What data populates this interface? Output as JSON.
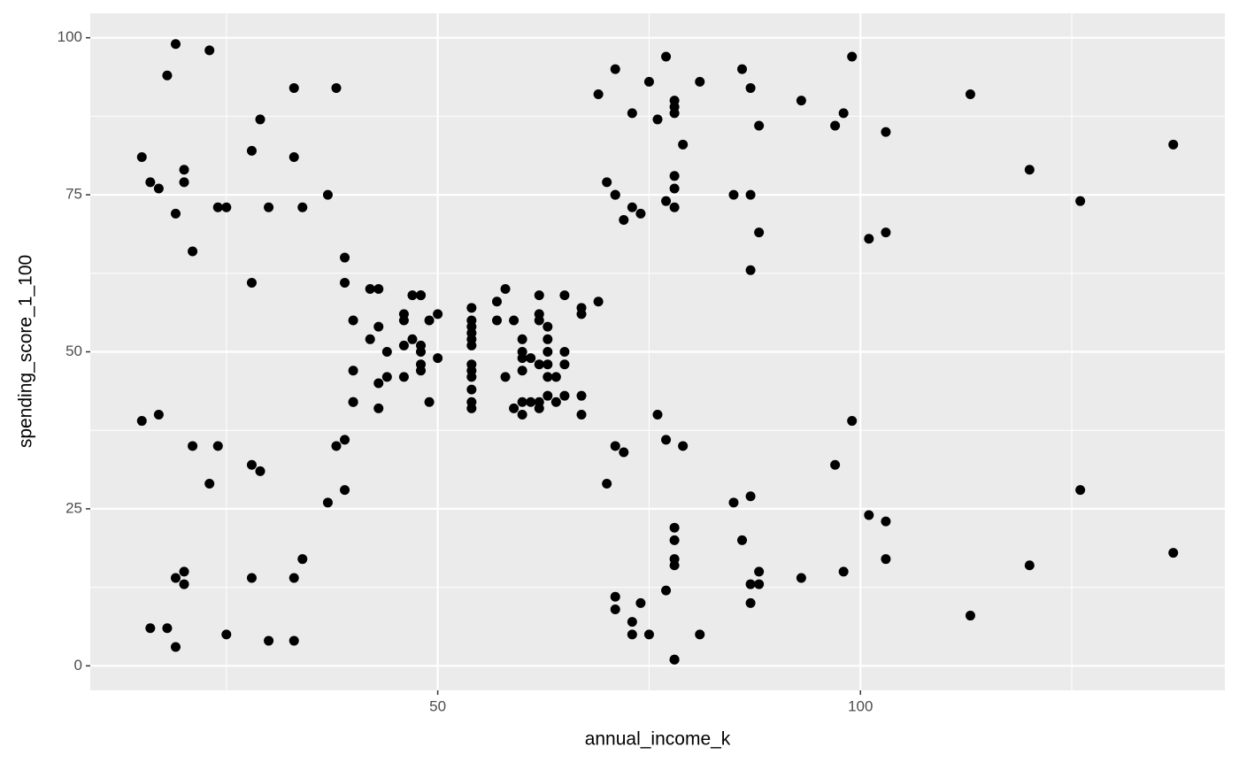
{
  "chart_data": {
    "type": "scatter",
    "x_label": "annual_income_k",
    "y_label": "spending_score_1_100",
    "xlim": [
      8.9,
      143.1
    ],
    "ylim": [
      -3.9,
      103.9
    ],
    "xticks": [
      50,
      100
    ],
    "yticks": [
      0,
      25,
      50,
      75,
      100
    ],
    "x_minor_breaks": [
      25,
      75,
      125
    ],
    "y_minor_breaks": [
      12.5,
      37.5,
      62.5,
      87.5
    ],
    "grid": true,
    "color": "#000000",
    "background": "#ebebeb",
    "x": [
      15,
      15,
      16,
      16,
      17,
      17,
      18,
      18,
      19,
      19,
      19,
      19,
      20,
      20,
      20,
      20,
      21,
      21,
      23,
      23,
      24,
      24,
      25,
      25,
      28,
      28,
      28,
      28,
      29,
      29,
      30,
      30,
      33,
      33,
      33,
      33,
      34,
      34,
      37,
      37,
      38,
      38,
      39,
      39,
      39,
      39,
      40,
      40,
      40,
      40,
      42,
      42,
      43,
      43,
      43,
      43,
      44,
      44,
      46,
      46,
      46,
      46,
      47,
      47,
      48,
      48,
      48,
      48,
      48,
      48,
      49,
      49,
      50,
      50,
      54,
      54,
      54,
      54,
      54,
      54,
      54,
      54,
      54,
      54,
      54,
      54,
      57,
      57,
      58,
      58,
      59,
      59,
      60,
      60,
      60,
      60,
      60,
      60,
      61,
      61,
      62,
      62,
      62,
      62,
      62,
      62,
      63,
      63,
      63,
      63,
      63,
      63,
      64,
      64,
      65,
      65,
      65,
      65,
      67,
      67,
      67,
      67,
      69,
      69,
      70,
      70,
      71,
      71,
      71,
      71,
      71,
      71,
      72,
      72,
      73,
      73,
      73,
      73,
      74,
      74,
      75,
      75,
      76,
      76,
      77,
      77,
      77,
      77,
      78,
      78,
      78,
      78,
      78,
      78,
      78,
      78,
      78,
      78,
      78,
      78,
      79,
      79,
      81,
      81,
      85,
      85,
      86,
      86,
      87,
      87,
      87,
      87,
      87,
      87,
      88,
      88,
      88,
      88,
      93,
      93,
      97,
      97,
      98,
      98,
      99,
      99,
      101,
      101,
      103,
      103,
      103,
      103,
      113,
      113,
      120,
      120,
      126,
      126,
      137,
      137
    ],
    "values": [
      39,
      81,
      6,
      77,
      40,
      76,
      6,
      94,
      3,
      72,
      14,
      99,
      15,
      77,
      13,
      79,
      35,
      66,
      29,
      98,
      35,
      73,
      5,
      73,
      14,
      82,
      32,
      61,
      31,
      87,
      4,
      73,
      4,
      92,
      14,
      81,
      17,
      73,
      26,
      75,
      35,
      92,
      36,
      61,
      28,
      65,
      55,
      47,
      42,
      42,
      52,
      60,
      54,
      60,
      45,
      41,
      50,
      46,
      51,
      46,
      56,
      55,
      52,
      59,
      51,
      59,
      50,
      48,
      59,
      47,
      55,
      42,
      49,
      56,
      47,
      54,
      53,
      48,
      52,
      42,
      51,
      55,
      41,
      44,
      57,
      46,
      58,
      55,
      60,
      46,
      55,
      41,
      49,
      40,
      42,
      52,
      47,
      50,
      42,
      49,
      41,
      48,
      59,
      55,
      56,
      42,
      50,
      46,
      43,
      48,
      52,
      54,
      42,
      46,
      48,
      50,
      43,
      59,
      43,
      57,
      56,
      40,
      58,
      91,
      29,
      77,
      35,
      95,
      11,
      75,
      9,
      75,
      34,
      71,
      5,
      88,
      7,
      73,
      10,
      72,
      5,
      93,
      40,
      87,
      12,
      97,
      36,
      74,
      22,
      90,
      17,
      88,
      20,
      76,
      16,
      89,
      1,
      78,
      1,
      73,
      35,
      83,
      5,
      93,
      26,
      75,
      20,
      95,
      27,
      63,
      13,
      75,
      10,
      92,
      13,
      86,
      15,
      69,
      14,
      90,
      32,
      86,
      15,
      88,
      39,
      97,
      24,
      68,
      17,
      85,
      23,
      69,
      8,
      91,
      16,
      79,
      28,
      74,
      18,
      83
    ]
  }
}
